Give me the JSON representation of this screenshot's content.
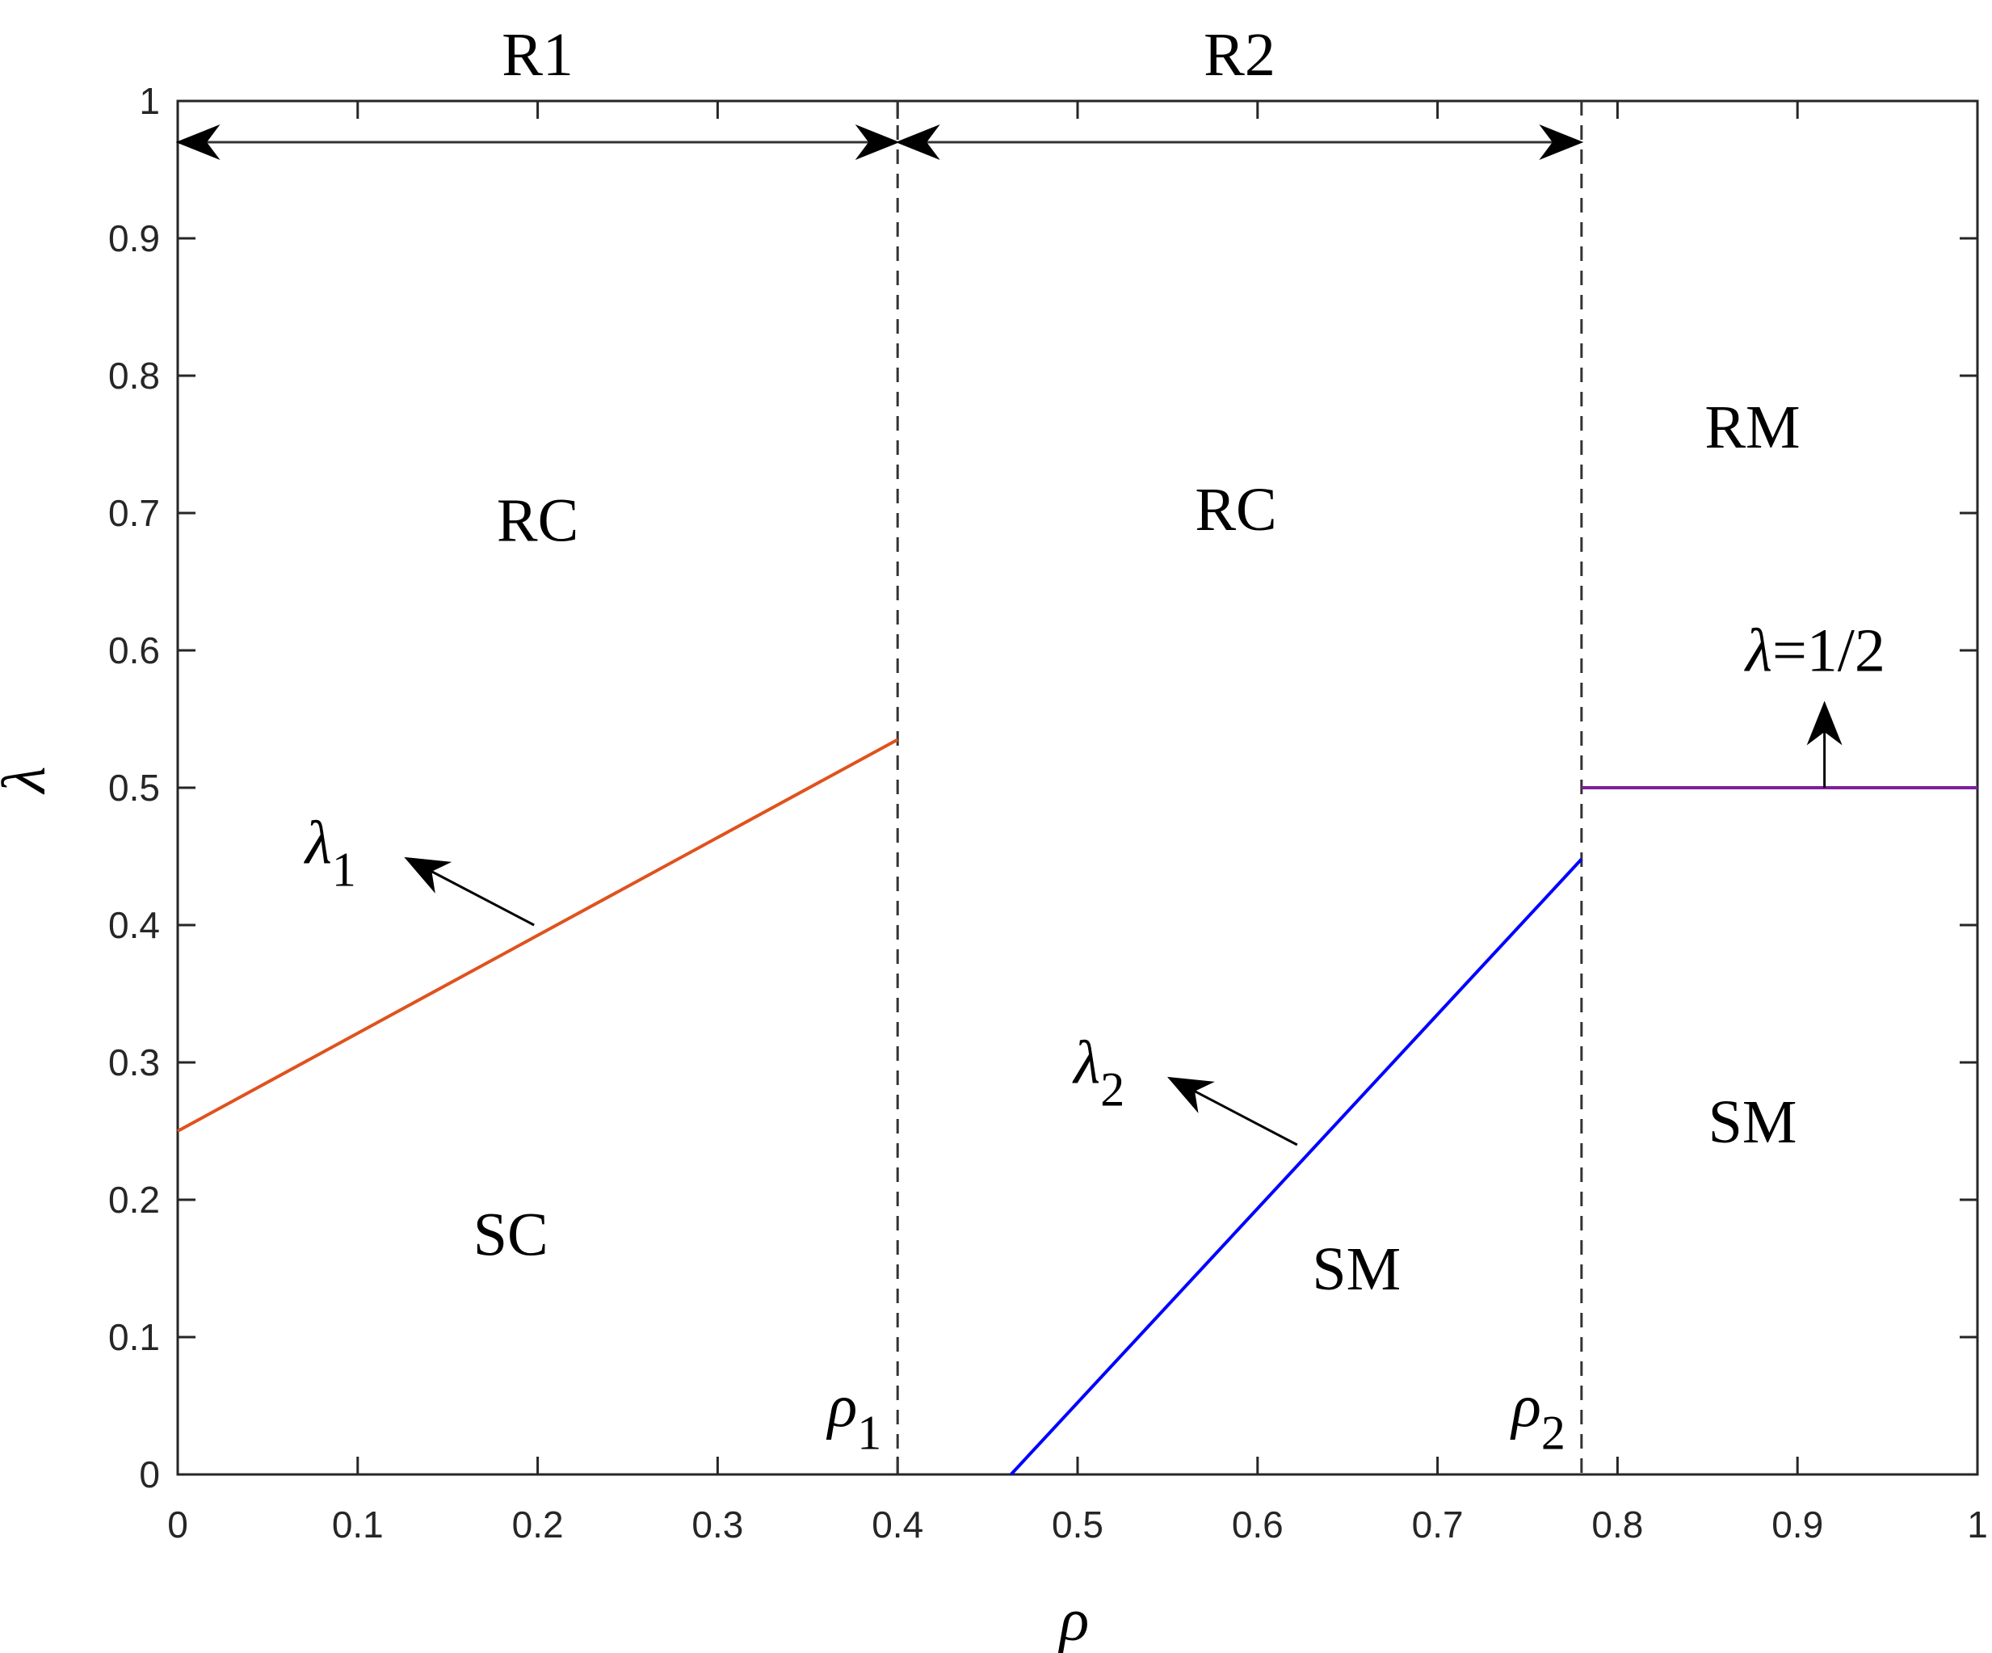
{
  "chart_data": {
    "type": "line",
    "title": "",
    "xlabel": "ρ",
    "ylabel": "λ",
    "xlim": [
      0,
      1
    ],
    "ylim": [
      0,
      1
    ],
    "x_ticks": [
      "0",
      "0.1",
      "0.2",
      "0.3",
      "0.4",
      "0.5",
      "0.6",
      "0.7",
      "0.8",
      "0.9",
      "1"
    ],
    "y_ticks": [
      "0",
      "0.1",
      "0.2",
      "0.3",
      "0.4",
      "0.5",
      "0.6",
      "0.7",
      "0.8",
      "0.9",
      "1"
    ],
    "grid": false,
    "series": [
      {
        "name": "λ",
        "sub": "1",
        "color": "#E0521D",
        "x": [
          0,
          0.4
        ],
        "y": [
          0.25,
          0.535
        ]
      },
      {
        "name": "λ",
        "sub": "2",
        "color": "#0000FF",
        "x": [
          0.463,
          0.78
        ],
        "y": [
          0,
          0.448
        ]
      },
      {
        "name": "λ=1/2",
        "color": "#7E1E9C",
        "x": [
          0.78,
          1
        ],
        "y": [
          0.5,
          0.5
        ]
      }
    ],
    "vlines": [
      {
        "label": "ρ",
        "sub": "1",
        "x": 0.4,
        "style": "dashed"
      },
      {
        "label": "ρ",
        "sub": "2",
        "x": 0.78,
        "style": "dashed"
      }
    ],
    "ranges": [
      {
        "label": "R1",
        "from": 0,
        "to": 0.4,
        "y": 0.97
      },
      {
        "label": "R2",
        "from": 0.4,
        "to": 0.78,
        "y": 0.97
      }
    ],
    "regions": [
      {
        "label": "RC",
        "x": 0.2,
        "y": 0.695
      },
      {
        "label": "SC",
        "x": 0.185,
        "y": 0.175
      },
      {
        "label": "RC",
        "x": 0.588,
        "y": 0.703
      },
      {
        "label": "SM",
        "x": 0.655,
        "y": 0.15
      },
      {
        "label": "RM",
        "x": 0.875,
        "y": 0.763
      },
      {
        "label": "SM",
        "x": 0.875,
        "y": 0.257
      }
    ],
    "annotations": [
      {
        "label": "λ",
        "sub": "1",
        "text_at": [
          0.085,
          0.445
        ],
        "arrow_from": [
          0.198,
          0.4
        ],
        "arrow_to": [
          0.128,
          0.448
        ]
      },
      {
        "label": "λ",
        "sub": "2",
        "text_at": [
          0.512,
          0.285
        ],
        "arrow_from": [
          0.622,
          0.24
        ],
        "arrow_to": [
          0.552,
          0.288
        ]
      },
      {
        "label": "λ=1/2",
        "text_at": [
          0.91,
          0.585
        ],
        "arrow_from": [
          0.915,
          0.5
        ],
        "arrow_to": [
          0.915,
          0.56
        ]
      }
    ]
  }
}
